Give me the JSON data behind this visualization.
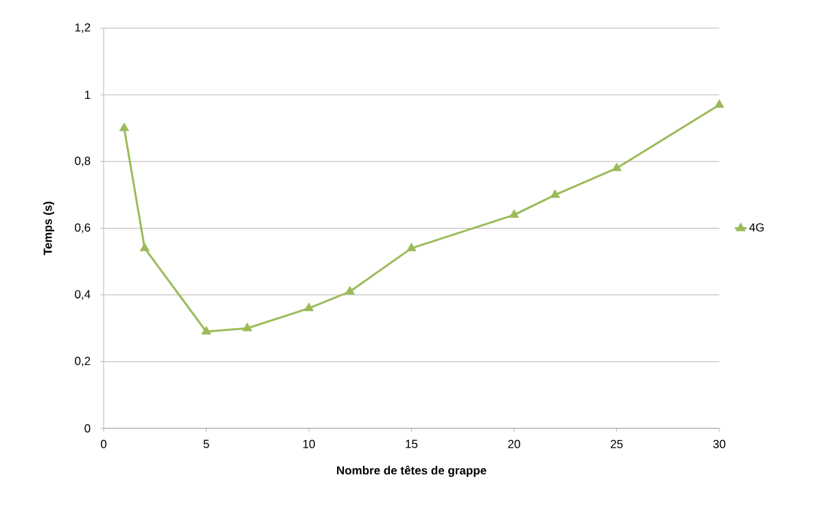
{
  "chart_data": {
    "type": "line",
    "xlabel": "Nombre de têtes de grappe",
    "ylabel": "Temps (s)",
    "x": [
      1,
      2,
      5,
      7,
      10,
      12,
      15,
      20,
      22,
      25,
      30
    ],
    "series": [
      {
        "name": "4G",
        "color": "#9bbb59",
        "values": [
          0.9,
          0.54,
          0.29,
          0.3,
          0.36,
          0.41,
          0.54,
          0.64,
          0.7,
          0.78,
          0.97
        ]
      }
    ],
    "xlim": [
      0,
      30
    ],
    "xticks": [
      0,
      5,
      10,
      15,
      20,
      25,
      30
    ],
    "ylim": [
      0,
      1.2
    ],
    "yticks": [
      0,
      {
        "value": 0.2,
        "label": "0,2"
      },
      {
        "value": 0.4,
        "label": "0,4"
      },
      {
        "value": 0.6,
        "label": "0,6"
      },
      {
        "value": 0.8,
        "label": "0,8"
      },
      1,
      {
        "value": 1.2,
        "label": "1,2"
      }
    ],
    "grid": "y",
    "legend": "right",
    "marker": "triangle",
    "line_style": "solid"
  }
}
